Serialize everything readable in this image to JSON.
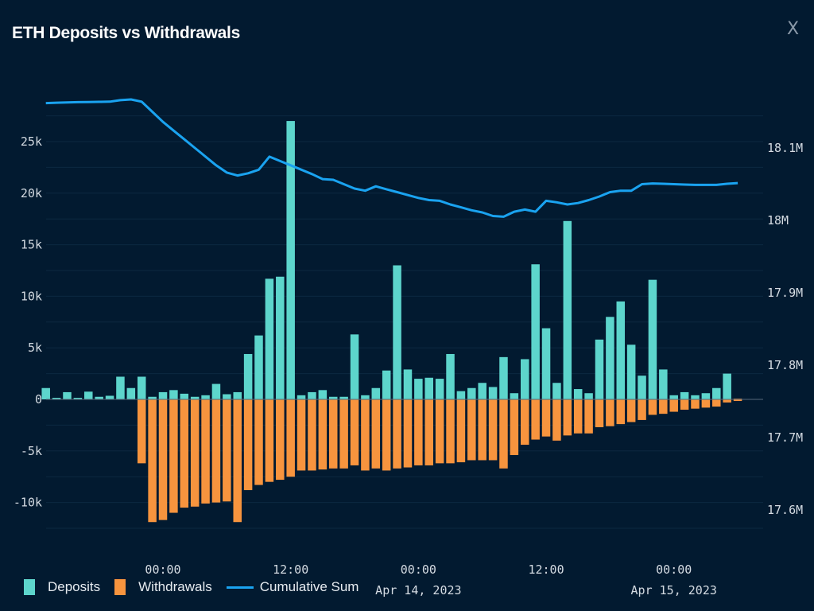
{
  "window": {
    "close_label": "X"
  },
  "chart_data": {
    "type": "bar",
    "title": "ETH Deposits vs Withdrawals",
    "xlabel": "",
    "ylabel": "",
    "y2label": "",
    "ylim": [
      -14000,
      29000
    ],
    "y2lim": [
      17540000,
      18200000
    ],
    "grid": true,
    "legend_position": "bottom-left",
    "y_ticks": [
      {
        "value": 25000,
        "label": "25k"
      },
      {
        "value": 20000,
        "label": "20k"
      },
      {
        "value": 15000,
        "label": "15k"
      },
      {
        "value": 10000,
        "label": "10k"
      },
      {
        "value": 5000,
        "label": "5k"
      },
      {
        "value": 0,
        "label": "0"
      },
      {
        "value": -5000,
        "label": "-5k"
      },
      {
        "value": -10000,
        "label": "-10k"
      }
    ],
    "y2_ticks": [
      {
        "value": 18100000,
        "label": "18.1M"
      },
      {
        "value": 18000000,
        "label": "18M"
      },
      {
        "value": 17900000,
        "label": "17.9M"
      },
      {
        "value": 17800000,
        "label": "17.8M"
      },
      {
        "value": 17700000,
        "label": "17.7M"
      },
      {
        "value": 17600000,
        "label": "17.6M"
      }
    ],
    "x_ticks": [
      {
        "hour": 0,
        "line1": "00:00",
        "line2": ""
      },
      {
        "hour": 12,
        "line1": "12:00",
        "line2": ""
      },
      {
        "hour": 24,
        "line1": "00:00",
        "line2": "Apr 14, 2023"
      },
      {
        "hour": 36,
        "line1": "12:00",
        "line2": ""
      },
      {
        "hour": 48,
        "line1": "00:00",
        "line2": "Apr 15, 2023"
      }
    ],
    "x_start_hour": -11,
    "x_end_hour": 56,
    "series": [
      {
        "name": "Deposits",
        "color": "#5dd5cc",
        "values": [
          1100,
          150,
          700,
          150,
          750,
          250,
          350,
          2200,
          1100,
          2200,
          250,
          700,
          900,
          550,
          250,
          400,
          1500,
          500,
          700,
          4400,
          6200,
          11700,
          11900,
          27000,
          400,
          700,
          900,
          250,
          250,
          6300,
          400,
          1100,
          2800,
          13000,
          2900,
          2000,
          2100,
          2000,
          4400,
          800,
          1100,
          1600,
          1200,
          4100,
          600,
          3900,
          13100,
          6900,
          1600,
          17300,
          1000,
          600,
          5800,
          8000,
          9500,
          5300,
          2300,
          11600,
          2900,
          400,
          700,
          400,
          600,
          1100,
          2500,
          0
        ]
      },
      {
        "name": "Withdrawals",
        "color": "#f7943e",
        "values": [
          0,
          0,
          0,
          0,
          0,
          0,
          0,
          0,
          0,
          -6200,
          -11900,
          -11700,
          -11000,
          -10500,
          -10400,
          -10100,
          -10000,
          -9900,
          -11900,
          -8800,
          -8300,
          -8000,
          -7800,
          -7500,
          -6900,
          -6900,
          -6800,
          -6700,
          -6700,
          -6400,
          -6900,
          -6700,
          -6900,
          -6700,
          -6600,
          -6400,
          -6400,
          -6200,
          -6200,
          -6100,
          -5900,
          -5900,
          -5900,
          -6700,
          -5400,
          -4400,
          -3900,
          -3600,
          -4000,
          -3500,
          -3300,
          -3300,
          -2700,
          -2600,
          -2400,
          -2200,
          -2000,
          -1500,
          -1400,
          -1200,
          -1000,
          -900,
          -800,
          -700,
          -300,
          0
        ]
      },
      {
        "name": "Cumulative Sum",
        "color": "#1aa3f0",
        "values": [
          18162000,
          18162500,
          18163000,
          18163300,
          18163500,
          18163700,
          18164000,
          18166000,
          18167000,
          18164000,
          18150000,
          18136000,
          18124000,
          18112000,
          18100000,
          18088000,
          18076000,
          18066000,
          18062000,
          18065000,
          18070000,
          18088000,
          18082000,
          18076000,
          18070000,
          18064000,
          18057000,
          18056000,
          18050000,
          18044000,
          18041000,
          18047000,
          18043000,
          18039000,
          18035000,
          18031000,
          18028000,
          18027000,
          18022000,
          18018000,
          18014000,
          18011000,
          18006000,
          18005000,
          18012000,
          18015000,
          18012000,
          18027000,
          18025000,
          18022000,
          18024000,
          18028000,
          18033000,
          18039000,
          18041000,
          18041000,
          18050000,
          18051000,
          18050500,
          18050000,
          18049500,
          18049000,
          18049000,
          18049000,
          18050500,
          18051500
        ]
      }
    ]
  }
}
